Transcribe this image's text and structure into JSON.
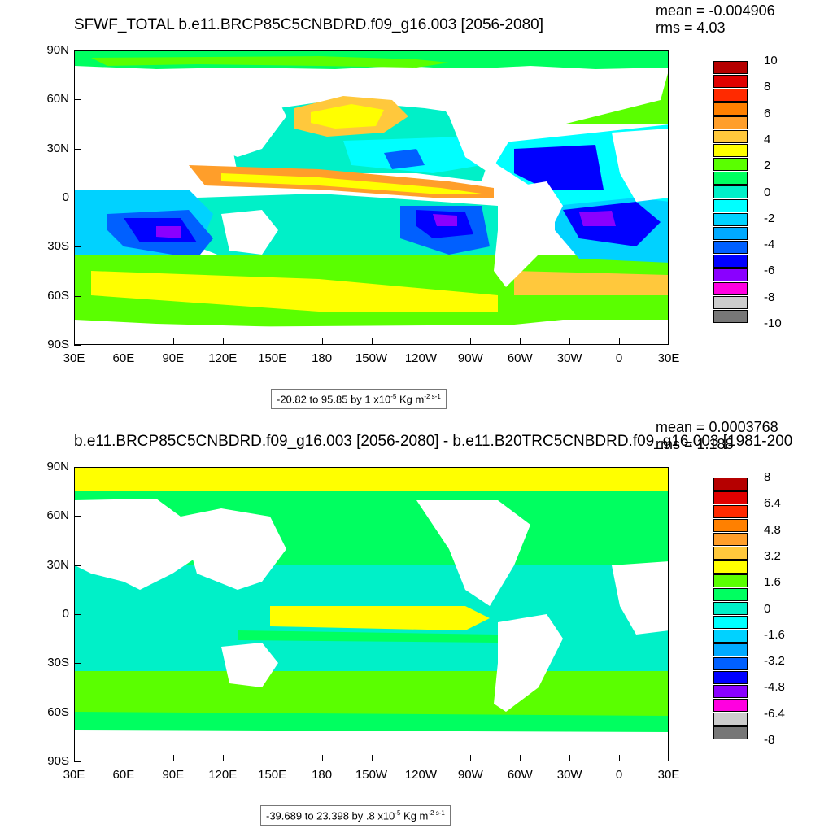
{
  "top": {
    "title": "SFWF_TOTAL b.e11.BRCP85C5CNBDRD.f09_g16.003 [2056-2080]",
    "mean": "mean = -0.004906",
    "rms": "rms = 4.03",
    "range_prefix": "-20.82 to 95.85 by 1 x10",
    "range_exp": "-5",
    "range_unit": " Kg m",
    "range_unit_exp": "-2 s-1",
    "colorbar_labels": [
      "10",
      "8",
      "6",
      "4",
      "2",
      "0",
      "-2",
      "-4",
      "-6",
      "-8",
      "-10"
    ],
    "colorbar_colors": [
      "#b50000",
      "#e00000",
      "#ff2a00",
      "#ff8000",
      "#ff9e2a",
      "#ffc83c",
      "#ffff00",
      "#5aff00",
      "#00ff60",
      "#00f0c8",
      "#00ffff",
      "#00d2ff",
      "#00aaff",
      "#0060ff",
      "#0000ff",
      "#8a00ff",
      "#ff00e0",
      "#cccccc",
      "#777777"
    ]
  },
  "bottom": {
    "title": "b.e11.BRCP85C5CNBDRD.f09_g16.003 [2056-2080] - b.e11.B20TRC5CNBDRD.f09_g16.003 [1981-200",
    "mean": "mean = 0.0003768",
    "rms": "rms = 1.188",
    "range_prefix": "-39.689 to 23.398 by .8 x10",
    "range_exp": "-5",
    "range_unit": " Kg m",
    "range_unit_exp": "-2 s-1",
    "colorbar_labels": [
      "8",
      "6.4",
      "4.8",
      "3.2",
      "1.6",
      "0",
      "-1.6",
      "-3.2",
      "-4.8",
      "-6.4",
      "-8"
    ],
    "colorbar_colors": [
      "#b50000",
      "#e00000",
      "#ff2a00",
      "#ff8000",
      "#ff9e2a",
      "#ffc83c",
      "#ffff00",
      "#5aff00",
      "#00ff60",
      "#00f0c8",
      "#00ffff",
      "#00d2ff",
      "#00aaff",
      "#0060ff",
      "#0000ff",
      "#8a00ff",
      "#ff00e0",
      "#cccccc",
      "#777777"
    ]
  },
  "axes": {
    "lat_labels": [
      "90N",
      "60N",
      "30N",
      "0",
      "30S",
      "60S",
      "90S"
    ],
    "lon_labels": [
      "30E",
      "60E",
      "90E",
      "120E",
      "150E",
      "180",
      "150W",
      "120W",
      "90W",
      "60W",
      "30W",
      "0",
      "30E"
    ]
  }
}
